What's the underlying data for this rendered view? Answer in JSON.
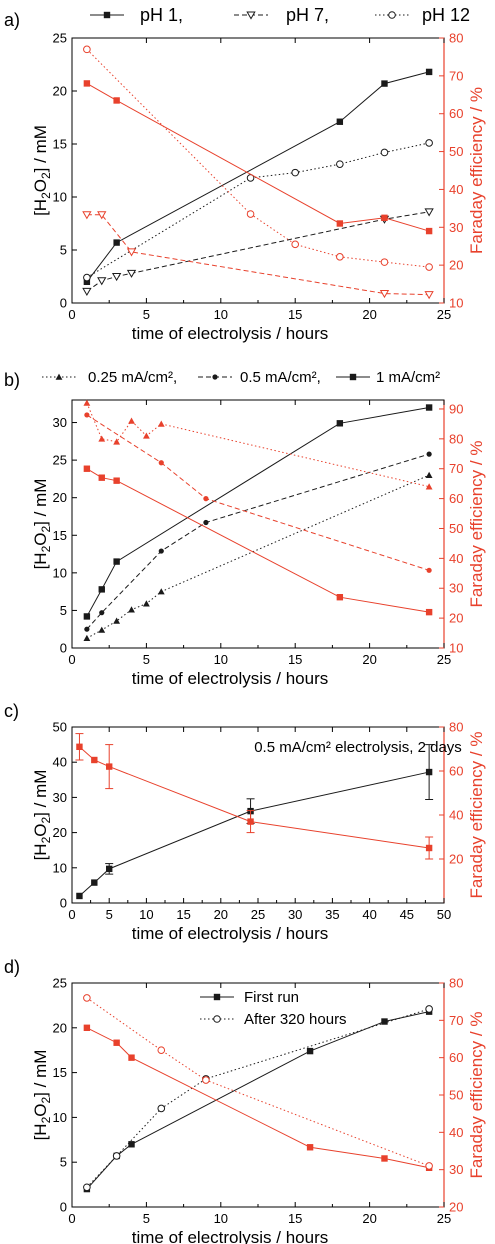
{
  "colors": {
    "black": "#1a1a1a",
    "red": "#e8412c"
  },
  "chart_data": [
    {
      "panel_label": "a)",
      "type": "line",
      "xlabel": "time of electrolysis / hours",
      "ylabel": "[H2O2] / mM",
      "ylabel_right": "Faraday efficiency / %",
      "xlim": [
        0,
        25
      ],
      "ylim": [
        0,
        25
      ],
      "y2lim": [
        10,
        80
      ],
      "xticks": [
        0,
        5,
        10,
        15,
        20,
        25
      ],
      "yticks": [
        0,
        5,
        10,
        15,
        20,
        25
      ],
      "y2ticks": [
        10,
        20,
        30,
        40,
        50,
        60,
        70,
        80
      ],
      "legend_position": "top",
      "legend_text": [
        "pH 1,",
        "pH 7,",
        "pH 12"
      ],
      "series": [
        {
          "name": "pH 1",
          "axis": "left",
          "color": "black",
          "marker": "square",
          "dash": "solid",
          "x": [
            1,
            3,
            18,
            21,
            24
          ],
          "y": [
            2.0,
            5.7,
            17.1,
            20.7,
            21.8
          ]
        },
        {
          "name": "pH 7",
          "axis": "left",
          "color": "black",
          "marker": "triangle-down",
          "dash": "dashed",
          "x": [
            1,
            2,
            3,
            4,
            21,
            24
          ],
          "y": [
            1.1,
            2.1,
            2.5,
            2.8,
            7.9,
            8.6
          ]
        },
        {
          "name": "pH 12",
          "axis": "left",
          "color": "black",
          "marker": "circle",
          "dash": "dotted",
          "x": [
            1,
            12,
            15,
            18,
            21,
            24
          ],
          "y": [
            2.4,
            11.8,
            12.3,
            13.1,
            14.2,
            15.1
          ]
        },
        {
          "name": "pH 1",
          "axis": "right",
          "color": "red",
          "marker": "square",
          "dash": "solid",
          "x": [
            1,
            3,
            18,
            21,
            24
          ],
          "y": [
            68,
            63.5,
            31,
            32.5,
            29
          ]
        },
        {
          "name": "pH 7",
          "axis": "right",
          "color": "red",
          "marker": "triangle-down",
          "dash": "dashed",
          "x": [
            1,
            2,
            4,
            21,
            24
          ],
          "y": [
            33.3,
            33.3,
            23.5,
            12.5,
            12.2
          ]
        },
        {
          "name": "pH 12",
          "axis": "right",
          "color": "red",
          "marker": "circle",
          "dash": "dotted",
          "x": [
            1,
            12,
            15,
            18,
            21,
            24
          ],
          "y": [
            77,
            33.5,
            25.5,
            22.2,
            20.8,
            19.5
          ]
        }
      ]
    },
    {
      "panel_label": "b)",
      "type": "line",
      "xlabel": "time of electrolysis / hours",
      "ylabel": "[H2O2] / mM",
      "ylabel_right": "Faraday efficiency / %",
      "xlim": [
        0,
        25
      ],
      "ylim": [
        0,
        33
      ],
      "y2lim": [
        10,
        93
      ],
      "xticks": [
        0,
        5,
        10,
        15,
        20,
        25
      ],
      "yticks": [
        0,
        5,
        10,
        15,
        20,
        25,
        30
      ],
      "y2ticks": [
        10,
        20,
        30,
        40,
        50,
        60,
        70,
        80,
        90
      ],
      "legend_position": "top",
      "legend_text": [
        "0.25 mA/cm², ",
        "0.5 mA/cm², ",
        "1 mA/cm²"
      ],
      "series": [
        {
          "name": "0.25 mA/cm²",
          "axis": "left",
          "color": "black",
          "marker": "triangle",
          "dash": "dotted",
          "x": [
            1,
            2,
            3,
            4,
            5,
            6,
            24
          ],
          "y": [
            1.3,
            2.4,
            3.6,
            5.1,
            5.9,
            7.5,
            23.0
          ]
        },
        {
          "name": "0.5 mA/cm²",
          "axis": "left",
          "color": "black",
          "marker": "circle-filled",
          "dash": "dashed",
          "x": [
            1,
            2,
            6,
            9,
            24
          ],
          "y": [
            2.5,
            4.7,
            12.9,
            16.7,
            25.8
          ]
        },
        {
          "name": "1 mA/cm²",
          "axis": "left",
          "color": "black",
          "marker": "square",
          "dash": "solid",
          "x": [
            1,
            2,
            3,
            18,
            24
          ],
          "y": [
            4.2,
            7.8,
            11.5,
            29.9,
            32.0
          ]
        },
        {
          "name": "0.25 mA/cm²",
          "axis": "right",
          "color": "red",
          "marker": "triangle",
          "dash": "dotted",
          "x": [
            1,
            2,
            3,
            4,
            5,
            6,
            24
          ],
          "y": [
            92,
            80,
            79,
            86,
            81,
            85,
            64
          ]
        },
        {
          "name": "0.5 mA/cm²",
          "axis": "right",
          "color": "red",
          "marker": "circle-filled",
          "dash": "dashed",
          "x": [
            1,
            6,
            9,
            24
          ],
          "y": [
            88,
            72,
            60,
            36
          ]
        },
        {
          "name": "1 mA/cm²",
          "axis": "right",
          "color": "red",
          "marker": "square",
          "dash": "solid",
          "x": [
            1,
            2,
            3,
            18,
            24
          ],
          "y": [
            70,
            67,
            66,
            27,
            22
          ]
        }
      ]
    },
    {
      "panel_label": "c)",
      "type": "line",
      "annotation": "0.5 mA/cm² electrolysis, 2 days",
      "xlabel": "time of electrolysis / hours",
      "ylabel": "[H2O2] / mM",
      "ylabel_right": "Faraday efficiency / %",
      "xlim": [
        0,
        50
      ],
      "ylim": [
        0,
        50
      ],
      "y2lim": [
        0,
        80
      ],
      "xticks": [
        0,
        5,
        10,
        15,
        20,
        25,
        30,
        35,
        40,
        45,
        50
      ],
      "yticks": [
        0,
        10,
        20,
        30,
        40,
        50
      ],
      "y2ticks": [
        20,
        40,
        60,
        80
      ],
      "series": [
        {
          "name": "[H2O2]",
          "axis": "left",
          "color": "black",
          "marker": "square",
          "dash": "solid",
          "x": [
            1,
            3,
            5,
            24,
            48
          ],
          "y": [
            2.0,
            5.8,
            9.7,
            26.1,
            37.2
          ],
          "err": [
            0,
            0,
            1.5,
            3.5,
            7.8
          ]
        },
        {
          "name": "Faraday efficiency",
          "axis": "right",
          "color": "red",
          "marker": "square",
          "dash": "solid",
          "x": [
            1,
            3,
            5,
            24,
            48
          ],
          "y": [
            71,
            65,
            62,
            37,
            25
          ],
          "err": [
            6,
            0,
            10,
            5,
            5
          ]
        }
      ]
    },
    {
      "panel_label": "d)",
      "type": "line",
      "xlabel": "time of electrolysis / hours",
      "ylabel": "[H2O2] / mM",
      "ylabel_right": "Faraday efficiency / %",
      "xlim": [
        0,
        25
      ],
      "ylim": [
        0,
        25
      ],
      "y2lim": [
        20,
        80
      ],
      "xticks": [
        0,
        5,
        10,
        15,
        20,
        25
      ],
      "yticks": [
        0,
        5,
        10,
        15,
        20,
        25
      ],
      "y2ticks": [
        20,
        30,
        40,
        50,
        60,
        70,
        80
      ],
      "legend_position": "top-center",
      "legend_text": [
        "First run",
        "After 320 hours"
      ],
      "series": [
        {
          "name": "First run",
          "axis": "left",
          "color": "black",
          "marker": "square",
          "dash": "solid",
          "x": [
            1,
            3,
            4,
            16,
            21,
            24
          ],
          "y": [
            2.0,
            5.7,
            7.0,
            17.4,
            20.7,
            21.8
          ]
        },
        {
          "name": "After 320 hours",
          "axis": "left",
          "color": "black",
          "marker": "circle",
          "dash": "dotted",
          "x": [
            1,
            3,
            6,
            9,
            24
          ],
          "y": [
            2.2,
            5.7,
            11.0,
            14.3,
            22.1
          ]
        },
        {
          "name": "First run",
          "axis": "right",
          "color": "red",
          "marker": "square",
          "dash": "solid",
          "x": [
            1,
            3,
            4,
            16,
            21,
            24
          ],
          "y": [
            68,
            64,
            60,
            36,
            33,
            30.5
          ]
        },
        {
          "name": "After 320 hours",
          "axis": "right",
          "color": "red",
          "marker": "circle",
          "dash": "dotted",
          "x": [
            1,
            6,
            9,
            24
          ],
          "y": [
            76,
            62,
            54,
            31
          ]
        }
      ]
    }
  ]
}
